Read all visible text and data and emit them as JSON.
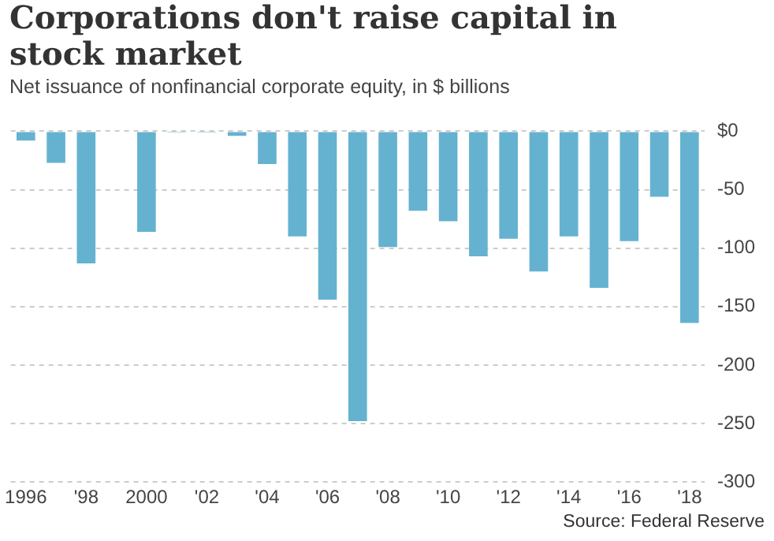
{
  "chart_data": {
    "type": "bar",
    "title": "Corporations don't raise capital in stock market",
    "subtitle": "Net issuance of nonfinancial corporate equity, in $ billions",
    "categories": [
      "1996",
      null,
      "'98",
      null,
      "2000",
      null,
      "'02",
      null,
      "'04",
      null,
      "'06",
      null,
      "'08",
      null,
      "'10",
      null,
      "'12",
      null,
      "'14",
      null,
      "'16",
      null,
      "'18"
    ],
    "values": [
      -8,
      -27,
      -113,
      null,
      -86,
      -1,
      -1,
      -4,
      -28,
      -90,
      -144,
      -248,
      -99,
      -68,
      -77,
      -107,
      -92,
      -120,
      -90,
      -134,
      -94,
      -56,
      -164
    ],
    "color": "#65b2d0",
    "ylim": [
      -300,
      0
    ],
    "yticks": [
      {
        "value": 0,
        "label": "$0"
      },
      -50,
      -100,
      -150,
      -200,
      -250,
      -300
    ],
    "grid": "y",
    "annotations": [
      "Source: Federal Reserve"
    ]
  }
}
